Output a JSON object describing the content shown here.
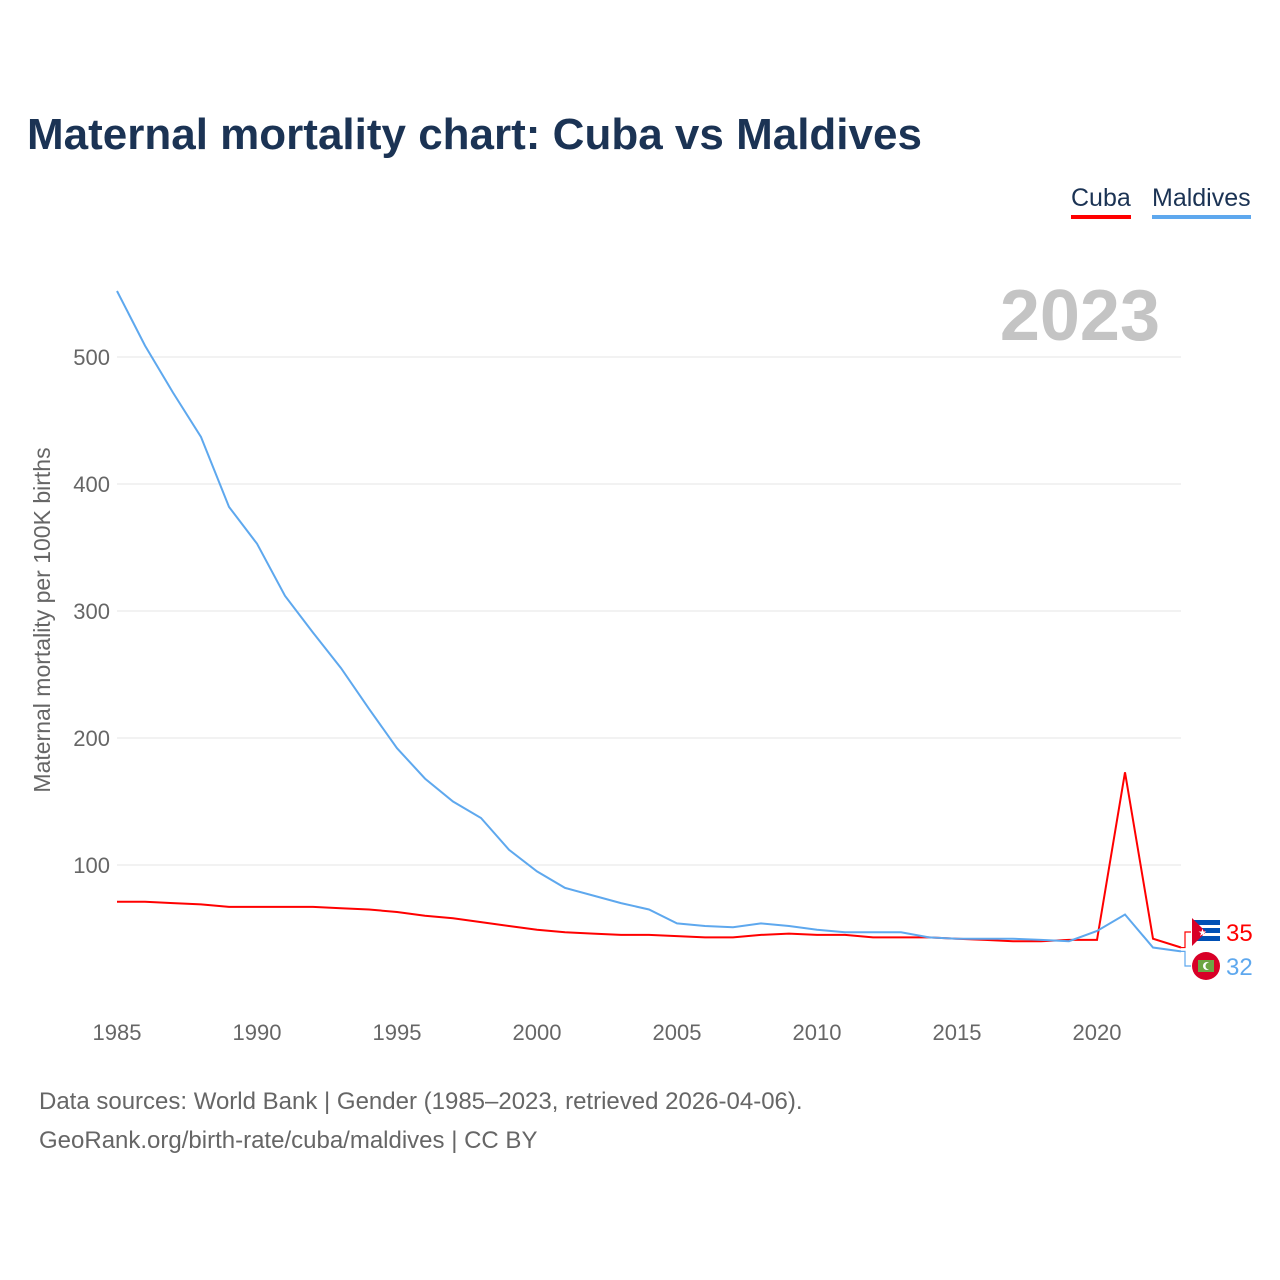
{
  "chart_data": {
    "type": "line",
    "title": "Maternal mortality chart: Cuba vs Maldives",
    "ylabel": "Maternal mortality per 100K births",
    "xlabel": "",
    "year_label": "2023",
    "xlim": [
      1985,
      2023
    ],
    "ylim": [
      0,
      560
    ],
    "x_ticks": [
      1985,
      1990,
      1995,
      2000,
      2005,
      2010,
      2015,
      2020
    ],
    "y_ticks": [
      100,
      200,
      300,
      400,
      500
    ],
    "grid": true,
    "legend_position": "top-right",
    "x": [
      1985,
      1986,
      1987,
      1988,
      1989,
      1990,
      1991,
      1992,
      1993,
      1994,
      1995,
      1996,
      1997,
      1998,
      1999,
      2000,
      2001,
      2002,
      2003,
      2004,
      2005,
      2006,
      2007,
      2008,
      2009,
      2010,
      2011,
      2012,
      2013,
      2014,
      2015,
      2016,
      2017,
      2018,
      2019,
      2020,
      2021,
      2022,
      2023
    ],
    "series": [
      {
        "name": "Cuba",
        "color": "#ff0000",
        "end_label": "35",
        "values": [
          71,
          71,
          70,
          69,
          67,
          67,
          67,
          67,
          66,
          65,
          63,
          60,
          58,
          55,
          52,
          49,
          47,
          46,
          45,
          45,
          44,
          43,
          43,
          45,
          46,
          45,
          45,
          43,
          43,
          43,
          42,
          41,
          40,
          40,
          41,
          41,
          173,
          42,
          35
        ]
      },
      {
        "name": "Maldives",
        "color": "#5ea8ee",
        "end_label": "32",
        "values": [
          552,
          509,
          472,
          437,
          382,
          353,
          312,
          283,
          255,
          223,
          192,
          168,
          150,
          137,
          112,
          95,
          82,
          76,
          70,
          65,
          54,
          52,
          51,
          54,
          52,
          49,
          47,
          47,
          47,
          43,
          42,
          42,
          42,
          41,
          40,
          48,
          61,
          35,
          32
        ]
      }
    ]
  },
  "footer": {
    "line1": "Data sources: World Bank | Gender (1985–2023, retrieved 2026-04-06).",
    "line2": "GeoRank.org/birth-rate/cuba/maldives | CC BY"
  }
}
